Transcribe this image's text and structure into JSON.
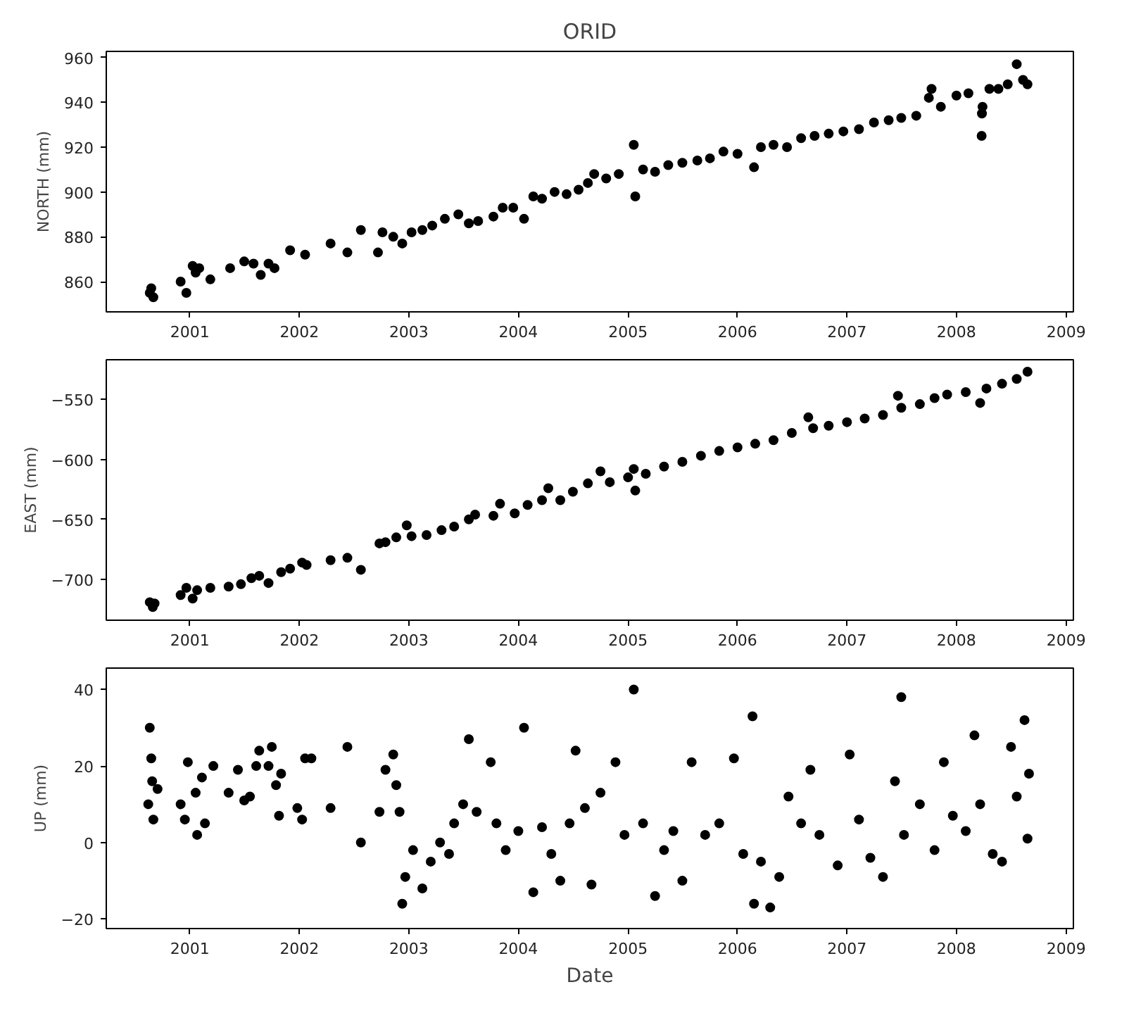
{
  "chart_data": [
    {
      "type": "scatter",
      "title": "ORID",
      "ylabel": "NORTH (mm)",
      "marker": "circle",
      "color": "#000000",
      "xlim": [
        "2000-03-28",
        "2009-01-25"
      ],
      "xticks": [
        "2001",
        "2002",
        "2003",
        "2004",
        "2005",
        "2006",
        "2007",
        "2008",
        "2009"
      ],
      "ylim": [
        846.5,
        962.7
      ],
      "yticks": [
        860,
        880,
        900,
        920,
        940,
        960
      ],
      "x": [
        "2000-08-20",
        "2000-08-25",
        "2000-09-01",
        "2000-12-01",
        "2000-12-20",
        "2001-01-10",
        "2001-01-20",
        "2001-02-01",
        "2001-03-10",
        "2001-05-15",
        "2001-07-01",
        "2001-08-01",
        "2001-08-25",
        "2001-09-20",
        "2001-10-10",
        "2001-12-01",
        "2002-01-20",
        "2002-04-15",
        "2002-06-10",
        "2002-07-25",
        "2002-09-20",
        "2002-10-05",
        "2002-11-10",
        "2002-12-10",
        "2003-01-10",
        "2003-02-15",
        "2003-03-20",
        "2003-05-01",
        "2003-06-15",
        "2003-07-20",
        "2003-08-20",
        "2003-10-10",
        "2003-11-10",
        "2003-12-15",
        "2004-01-20",
        "2004-02-20",
        "2004-03-20",
        "2004-05-01",
        "2004-06-10",
        "2004-07-20",
        "2004-08-20",
        "2004-09-10",
        "2004-10-20",
        "2004-12-01",
        "2005-01-20",
        "2005-01-25",
        "2005-02-20",
        "2005-04-01",
        "2005-05-15",
        "2005-07-01",
        "2005-08-20",
        "2005-10-01",
        "2005-11-15",
        "2006-01-01",
        "2006-02-25",
        "2006-03-20",
        "2006-05-01",
        "2006-06-15",
        "2006-08-01",
        "2006-09-15",
        "2006-11-01",
        "2006-12-20",
        "2007-02-10",
        "2007-04-01",
        "2007-05-20",
        "2007-07-01",
        "2007-08-20",
        "2007-10-01",
        "2007-10-10",
        "2007-11-10",
        "2008-01-01",
        "2008-02-10",
        "2008-03-25",
        "2008-03-26",
        "2008-03-28",
        "2008-04-20",
        "2008-05-20",
        "2008-06-20",
        "2008-07-20",
        "2008-08-10",
        "2008-08-25"
      ],
      "values": [
        855,
        857,
        853,
        860,
        855,
        867,
        864,
        866,
        861,
        866,
        869,
        868,
        863,
        868,
        866,
        874,
        872,
        877,
        873,
        883,
        873,
        882,
        880,
        877,
        882,
        883,
        885,
        888,
        890,
        886,
        887,
        889,
        893,
        893,
        888,
        898,
        897,
        900,
        899,
        901,
        904,
        908,
        906,
        908,
        921,
        898,
        910,
        909,
        912,
        913,
        914,
        915,
        918,
        917,
        911,
        920,
        921,
        920,
        924,
        925,
        926,
        927,
        928,
        931,
        932,
        933,
        934,
        942,
        946,
        938,
        943,
        944,
        925,
        935,
        938,
        946,
        946,
        948,
        957,
        950,
        948
      ]
    },
    {
      "type": "scatter",
      "ylabel": "EAST (mm)",
      "marker": "circle",
      "color": "#000000",
      "xlim": [
        "2000-03-28",
        "2009-01-25"
      ],
      "xticks": [
        "2001",
        "2002",
        "2003",
        "2004",
        "2005",
        "2006",
        "2007",
        "2008",
        "2009"
      ],
      "ylim": [
        -734,
        -517
      ],
      "yticks": [
        -700,
        -650,
        -600,
        -550
      ],
      "x": [
        "2000-08-20",
        "2000-08-30",
        "2000-09-05",
        "2000-12-01",
        "2000-12-20",
        "2001-01-10",
        "2001-01-25",
        "2001-03-10",
        "2001-05-10",
        "2001-06-20",
        "2001-07-25",
        "2001-08-20",
        "2001-09-20",
        "2001-11-01",
        "2001-12-01",
        "2002-01-10",
        "2002-01-25",
        "2002-04-15",
        "2002-06-10",
        "2002-07-25",
        "2002-09-25",
        "2002-10-15",
        "2002-11-20",
        "2002-12-25",
        "2003-01-10",
        "2003-03-01",
        "2003-04-20",
        "2003-06-01",
        "2003-07-20",
        "2003-08-10",
        "2003-10-10",
        "2003-11-01",
        "2003-12-20",
        "2004-02-01",
        "2004-03-20",
        "2004-04-10",
        "2004-05-20",
        "2004-07-01",
        "2004-08-20",
        "2004-10-01",
        "2004-11-01",
        "2005-01-01",
        "2005-01-20",
        "2005-01-25",
        "2005-03-01",
        "2005-05-01",
        "2005-07-01",
        "2005-09-01",
        "2005-11-01",
        "2006-01-01",
        "2006-03-01",
        "2006-05-01",
        "2006-07-01",
        "2006-08-25",
        "2006-09-10",
        "2006-11-01",
        "2007-01-01",
        "2007-03-01",
        "2007-05-01",
        "2007-06-20",
        "2007-07-01",
        "2007-09-01",
        "2007-10-20",
        "2007-12-01",
        "2008-02-01",
        "2008-03-20",
        "2008-04-10",
        "2008-06-01",
        "2008-07-20",
        "2008-08-25"
      ],
      "values": [
        -719,
        -723,
        -720,
        -713,
        -707,
        -716,
        -709,
        -707,
        -706,
        -704,
        -699,
        -697,
        -703,
        -694,
        -691,
        -686,
        -688,
        -684,
        -682,
        -692,
        -670,
        -669,
        -665,
        -655,
        -664,
        -663,
        -659,
        -656,
        -650,
        -646,
        -647,
        -637,
        -645,
        -638,
        -634,
        -624,
        -634,
        -627,
        -620,
        -610,
        -619,
        -615,
        -608,
        -626,
        -612,
        -606,
        -602,
        -597,
        -593,
        -590,
        -587,
        -584,
        -578,
        -565,
        -574,
        -572,
        -569,
        -566,
        -563,
        -547,
        -557,
        -554,
        -549,
        -546,
        -544,
        -553,
        -541,
        -537,
        -533,
        -527
      ]
    },
    {
      "type": "scatter",
      "xlabel": "Date",
      "ylabel": "UP (mm)",
      "marker": "circle",
      "color": "#000000",
      "xlim": [
        "2000-03-28",
        "2009-01-25"
      ],
      "xticks": [
        "2001",
        "2002",
        "2003",
        "2004",
        "2005",
        "2006",
        "2007",
        "2008",
        "2009"
      ],
      "ylim": [
        -22.5,
        45.6
      ],
      "yticks": [
        -20,
        0,
        20,
        40
      ],
      "x": [
        "2000-08-15",
        "2000-08-20",
        "2000-08-25",
        "2000-08-28",
        "2000-09-01",
        "2000-09-15",
        "2000-12-01",
        "2000-12-15",
        "2000-12-25",
        "2001-01-20",
        "2001-01-25",
        "2001-02-10",
        "2001-02-20",
        "2001-03-20",
        "2001-05-10",
        "2001-06-10",
        "2001-07-01",
        "2001-07-20",
        "2001-08-10",
        "2001-08-20",
        "2001-09-20",
        "2001-10-01",
        "2001-10-15",
        "2001-10-25",
        "2001-11-01",
        "2001-12-25",
        "2002-01-10",
        "2002-01-20",
        "2002-02-10",
        "2002-04-15",
        "2002-06-10",
        "2002-07-25",
        "2002-09-25",
        "2002-10-15",
        "2002-11-10",
        "2002-11-20",
        "2002-12-01",
        "2002-12-10",
        "2002-12-20",
        "2003-01-15",
        "2003-02-15",
        "2003-03-15",
        "2003-04-15",
        "2003-05-15",
        "2003-06-01",
        "2003-07-01",
        "2003-07-20",
        "2003-08-15",
        "2003-10-01",
        "2003-10-20",
        "2003-11-20",
        "2004-01-01",
        "2004-01-20",
        "2004-02-20",
        "2004-03-20",
        "2004-04-20",
        "2004-05-20",
        "2004-06-20",
        "2004-07-10",
        "2004-08-10",
        "2004-09-01",
        "2004-10-01",
        "2004-11-20",
        "2004-12-20",
        "2005-01-20",
        "2005-02-20",
        "2005-04-01",
        "2005-05-01",
        "2005-06-01",
        "2005-07-01",
        "2005-08-01",
        "2005-09-15",
        "2005-11-01",
        "2005-12-20",
        "2006-01-20",
        "2006-02-20",
        "2006-02-25",
        "2006-03-20",
        "2006-04-20",
        "2006-05-20",
        "2006-06-20",
        "2006-08-01",
        "2006-09-01",
        "2006-10-01",
        "2006-12-01",
        "2007-01-10",
        "2007-02-10",
        "2007-03-20",
        "2007-05-01",
        "2007-06-10",
        "2007-07-01",
        "2007-07-10",
        "2007-09-01",
        "2007-10-20",
        "2007-11-20",
        "2007-12-20",
        "2008-02-01",
        "2008-03-01",
        "2008-03-20",
        "2008-05-01",
        "2008-06-01",
        "2008-07-01",
        "2008-07-20",
        "2008-08-15",
        "2008-08-25",
        "2008-08-30"
      ],
      "values": [
        10,
        30,
        22,
        16,
        6,
        14,
        10,
        6,
        21,
        13,
        2,
        17,
        5,
        20,
        13,
        19,
        11,
        12,
        20,
        24,
        20,
        25,
        15,
        7,
        18,
        9,
        6,
        22,
        22,
        9,
        25,
        0,
        8,
        19,
        23,
        15,
        8,
        -16,
        -9,
        -2,
        -12,
        -5,
        0,
        -3,
        5,
        10,
        27,
        8,
        21,
        5,
        -2,
        3,
        30,
        -13,
        4,
        -3,
        -10,
        5,
        24,
        9,
        -11,
        13,
        21,
        2,
        40,
        5,
        -14,
        -2,
        3,
        -10,
        21,
        2,
        5,
        22,
        -3,
        33,
        -16,
        -5,
        -17,
        -9,
        12,
        5,
        19,
        2,
        -6,
        23,
        6,
        -4,
        -9,
        16,
        38,
        2,
        10,
        -2,
        21,
        7,
        3,
        28,
        10,
        -3,
        -5,
        25,
        12,
        32,
        1,
        18
      ]
    }
  ]
}
